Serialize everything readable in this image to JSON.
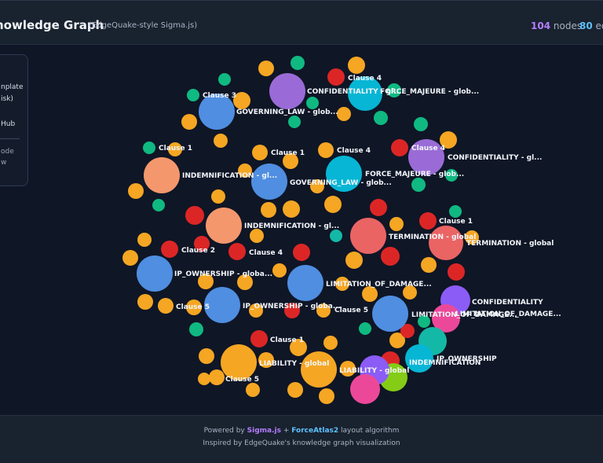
{
  "header": {
    "title": "nowledge Graph",
    "subtitle": "(EdgeQuake-style Sigma.js)",
    "nodes_count": "104",
    "nodes_label": "nodes",
    "edges_count": "80",
    "edges_label": "edg"
  },
  "panel": {
    "line1": "nplate",
    "line2": "isk)",
    "line3": "Hub",
    "line4": "ode",
    "line5": "w"
  },
  "footer": {
    "powered": "Powered by",
    "sigma": "Sigma.js",
    "plus": "+",
    "fa2": "ForceAtlas2",
    "algo": "layout algorithm",
    "inspired": "Inspired by EdgeQuake's knowledge graph visualization"
  },
  "colors": {
    "purple": "#9a6bd6",
    "cyan": "#06b6d4",
    "blue": "#4f8ee0",
    "salmon": "#f4976c",
    "red_pink": "#ea6464",
    "orange": "#f5a623",
    "green": "#10b981",
    "red": "#dc2626",
    "pink": "#ec4899",
    "lime": "#84cc16",
    "violet": "#8b5cf6",
    "teal": "#14b8a6"
  },
  "graph": {
    "nodes": [
      {
        "label": "CONFIDENTIALITY - gl...",
        "color": "purple",
        "size": "big"
      },
      {
        "label": "FORCE_MAJEURE - glob...",
        "color": "cyan",
        "size": "big"
      },
      {
        "label": "Clause 4",
        "color": "red",
        "size": "small"
      },
      {
        "label": "GOVERNING_LAW - glob...",
        "color": "blue",
        "size": "big"
      },
      {
        "label": "Clause 3",
        "color": "green",
        "size": "small"
      },
      {
        "label": "CONFIDENTIALITY - gl...",
        "color": "purple",
        "size": "big"
      },
      {
        "label": "Clause 4",
        "color": "red",
        "size": "small"
      },
      {
        "label": "Clause 1",
        "color": "green",
        "size": "small"
      },
      {
        "label": "INDEMNIFICATION - gl...",
        "color": "salmon",
        "size": "big"
      },
      {
        "label": "Clause 1",
        "color": "orange",
        "size": "small"
      },
      {
        "label": "GOVERNING_LAW - glob...",
        "color": "blue",
        "size": "big"
      },
      {
        "label": "Clause 4",
        "color": "orange",
        "size": "small"
      },
      {
        "label": "FORCE_MAJEURE - glob...",
        "color": "cyan",
        "size": "big"
      },
      {
        "label": "INDEMNIFICATION - gl...",
        "color": "salmon",
        "size": "big"
      },
      {
        "label": "Clause 1",
        "color": "green",
        "size": "small"
      },
      {
        "label": "TERMINATION - global",
        "color": "red_pink",
        "size": "big"
      },
      {
        "label": "TERMINATION - global",
        "color": "red_pink",
        "size": "big"
      },
      {
        "label": "Clause 2",
        "color": "red",
        "size": "small"
      },
      {
        "label": "Clause 4",
        "color": "red",
        "size": "small"
      },
      {
        "label": "IP_OWNERSHIP - globa...",
        "color": "blue",
        "size": "big"
      },
      {
        "label": "LIMITATION_OF_DAMAGE...",
        "color": "blue",
        "size": "big"
      },
      {
        "label": "CONFIDENTIALITY",
        "color": "violet",
        "size": "big"
      },
      {
        "label": "Clause 5",
        "color": "orange",
        "size": "small"
      },
      {
        "label": "IP_OWNERSHIP - globa...",
        "color": "blue",
        "size": "big"
      },
      {
        "label": "Clause 5",
        "color": "green",
        "size": "small"
      },
      {
        "label": "LIMITATION_OF_DAMAGE...",
        "color": "blue",
        "size": "big"
      },
      {
        "label": "LIMITATION_OF_DAMAGE...",
        "color": "pink",
        "size": "big"
      },
      {
        "label": "Clause 1",
        "color": "red",
        "size": "small"
      },
      {
        "label": "IP_OWNERSHIP",
        "color": "teal",
        "size": "big"
      },
      {
        "label": "INDEMNIFICATION",
        "color": "cyan",
        "size": "big"
      },
      {
        "label": "LIABILITY - global",
        "color": "orange",
        "size": "big"
      },
      {
        "label": "LIABILITY - global",
        "color": "orange",
        "size": "big"
      },
      {
        "label": "Clause 5",
        "color": "orange",
        "size": "small"
      }
    ]
  }
}
